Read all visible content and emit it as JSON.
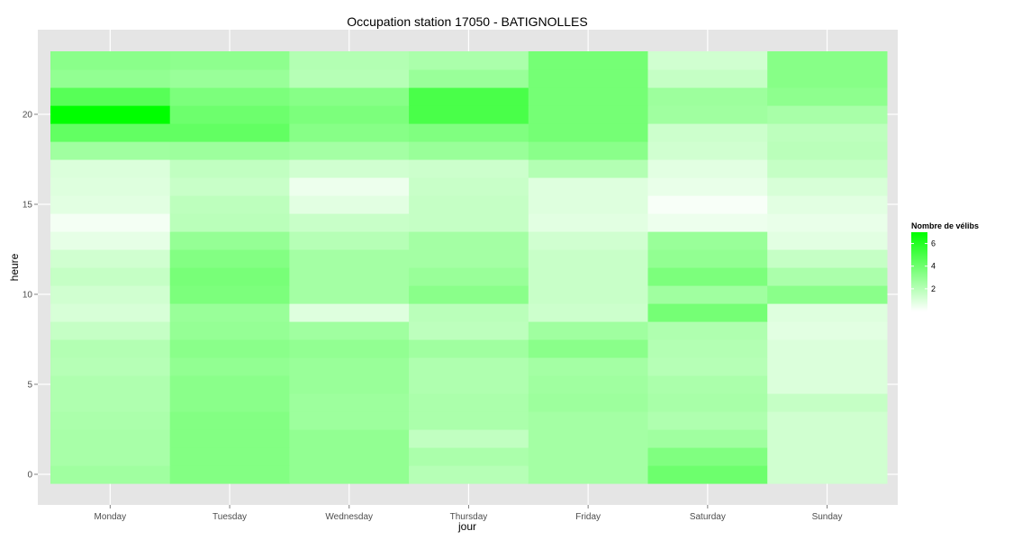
{
  "chart_data": {
    "type": "heatmap",
    "title": "Occupation station 17050 - BATIGNOLLES",
    "xlabel": "jour",
    "ylabel": "heure",
    "categories": [
      "Monday",
      "Tuesday",
      "Wednesday",
      "Thursday",
      "Friday",
      "Saturday",
      "Sunday"
    ],
    "y_ticks": [
      0,
      5,
      10,
      15,
      20
    ],
    "ylim": [
      -0.5,
      23.5
    ],
    "grid": true,
    "colors": {
      "panel_bg": "#e5e5e5",
      "grid": "#ffffff",
      "low": "#ffffff",
      "high": "#00ff00"
    },
    "values": [
      [
        2.6,
        3.4,
        3.0,
        2.0,
        2.5,
        4.0,
        1.3
      ],
      [
        2.4,
        3.4,
        3.0,
        2.3,
        2.5,
        3.5,
        1.3
      ],
      [
        2.4,
        3.4,
        3.0,
        1.7,
        2.5,
        2.6,
        1.3
      ],
      [
        2.3,
        3.4,
        2.7,
        2.3,
        2.5,
        2.2,
        1.3
      ],
      [
        2.2,
        3.2,
        2.7,
        2.3,
        2.7,
        2.4,
        1.6
      ],
      [
        2.2,
        3.2,
        2.8,
        2.2,
        2.6,
        2.3,
        1.0
      ],
      [
        2.0,
        3.0,
        2.8,
        2.2,
        2.5,
        2.0,
        1.0
      ],
      [
        2.1,
        3.2,
        3.0,
        2.6,
        3.2,
        2.1,
        1.0
      ],
      [
        1.6,
        2.9,
        2.6,
        1.8,
        2.6,
        2.2,
        0.8
      ],
      [
        1.1,
        2.8,
        0.9,
        1.9,
        1.4,
        3.8,
        0.9
      ],
      [
        1.3,
        3.6,
        2.5,
        3.2,
        1.5,
        2.6,
        3.2
      ],
      [
        1.6,
        3.7,
        2.5,
        2.8,
        1.5,
        3.6,
        2.3
      ],
      [
        1.3,
        3.4,
        2.5,
        2.5,
        1.5,
        3.0,
        1.6
      ],
      [
        0.7,
        2.9,
        2.0,
        2.5,
        1.3,
        2.8,
        0.8
      ],
      [
        0.3,
        1.9,
        1.5,
        1.6,
        0.8,
        0.5,
        0.6
      ],
      [
        0.8,
        1.8,
        0.8,
        1.6,
        0.9,
        0.2,
        0.8
      ],
      [
        0.9,
        1.5,
        0.5,
        1.5,
        0.9,
        0.6,
        1.1
      ],
      [
        1.0,
        1.7,
        1.3,
        1.4,
        2.1,
        0.8,
        1.6
      ],
      [
        2.6,
        2.7,
        2.5,
        2.8,
        3.2,
        1.3,
        1.9
      ],
      [
        4.3,
        4.3,
        3.3,
        3.5,
        3.8,
        1.4,
        1.8
      ],
      [
        7.0,
        4.0,
        3.6,
        5.0,
        3.8,
        2.6,
        2.4
      ],
      [
        4.6,
        3.6,
        3.3,
        5.0,
        3.8,
        2.7,
        3.1
      ],
      [
        3.0,
        2.8,
        2.0,
        2.8,
        3.8,
        1.6,
        3.3
      ],
      [
        3.2,
        3.1,
        2.1,
        2.3,
        3.8,
        1.3,
        3.3
      ]
    ],
    "legend": {
      "title": "Nombre de vélibs",
      "ticks": [
        2,
        4,
        6
      ],
      "range": [
        0,
        7
      ]
    }
  }
}
